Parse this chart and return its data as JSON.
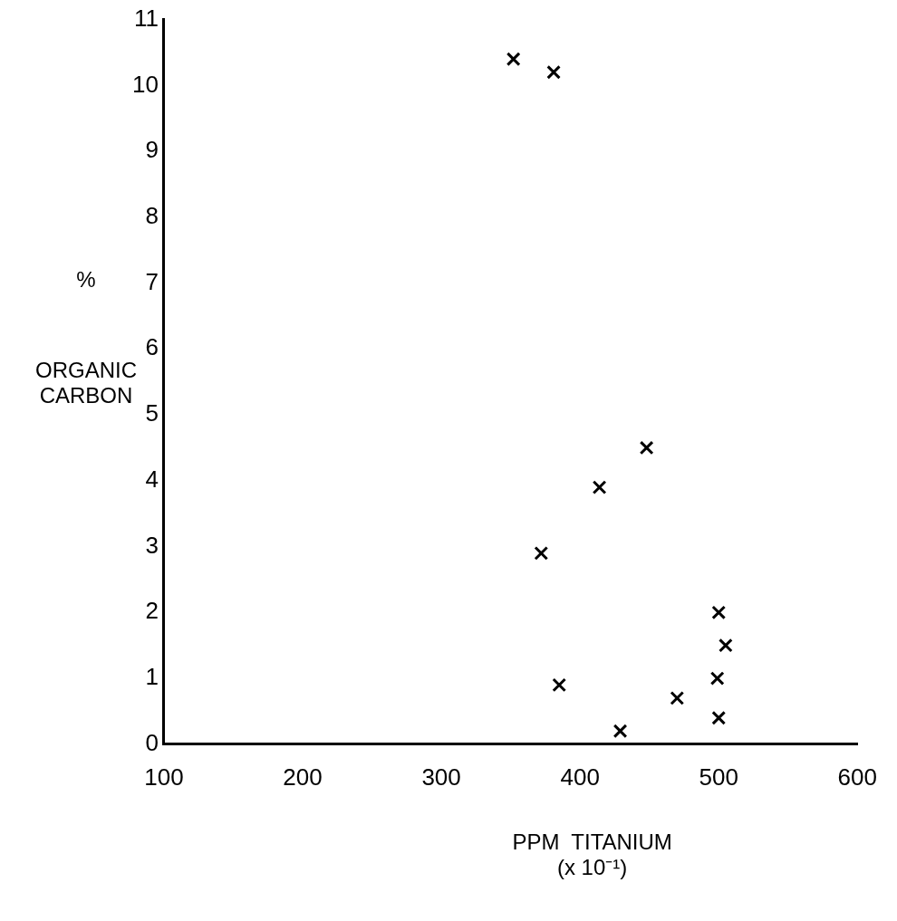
{
  "chart_data": {
    "type": "scatter",
    "xlabel": "PPM  TITANIUM\n(x 10⁻¹)",
    "ylabel": "%\nORGANIC\nCARBON",
    "x": [
      352,
      381,
      372,
      414,
      448,
      385,
      429,
      470,
      500,
      505,
      499,
      500
    ],
    "values": [
      10.4,
      10.2,
      2.9,
      3.9,
      4.5,
      0.9,
      0.2,
      0.7,
      2.0,
      1.5,
      1.0,
      0.4
    ],
    "color": "#000000",
    "marker": "cross",
    "grid": false,
    "legend": false,
    "xlim": [
      100,
      600
    ],
    "xticks": [
      100,
      200,
      300,
      400,
      500,
      600
    ],
    "ylim": [
      0,
      11
    ],
    "yticks": [
      0,
      1,
      2,
      3,
      4,
      5,
      6,
      7,
      8,
      9,
      10,
      11
    ]
  }
}
